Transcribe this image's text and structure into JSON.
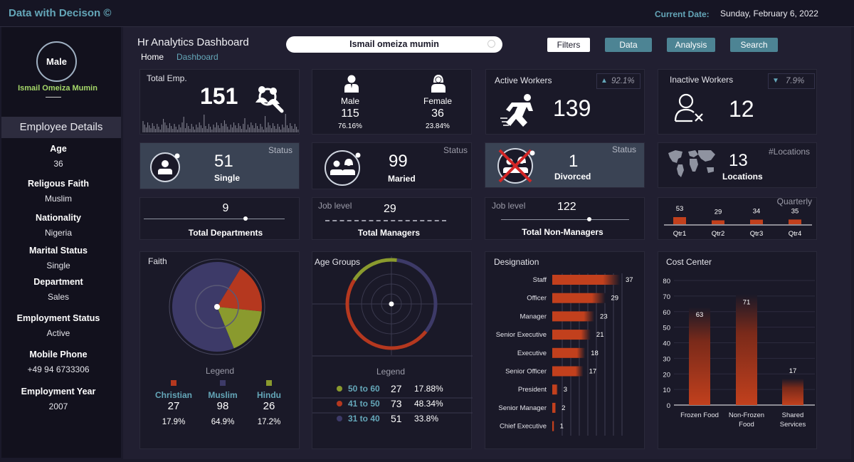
{
  "header": {
    "brand": "Data with Decison ©",
    "current_date_label": "Current Date:",
    "current_date": "Sunday, February 6, 2022",
    "title": "Hr Analytics Dashboard",
    "breadcrumb": {
      "home": "Home",
      "dashboard": "Dashboard"
    },
    "search_value": "Ismail omeiza mumin",
    "buttons": {
      "filters": "Filters",
      "data": "Data",
      "analysis": "Analysis",
      "search": "Search"
    }
  },
  "sidebar": {
    "gender": "Male",
    "name": "Ismail Omeiza Mumin",
    "section_title": "Employee Details",
    "fields": [
      {
        "label": "Age",
        "value": "36"
      },
      {
        "label": "Religous Faith",
        "value": "Muslim"
      },
      {
        "label": "Nationality",
        "value": "Nigeria"
      },
      {
        "label": "Marital Status",
        "value": "Single"
      },
      {
        "label": "Department",
        "value": "Sales"
      },
      {
        "label": "Employment Status",
        "value": "Active"
      },
      {
        "label": "Mobile Phone",
        "value": "+49 94 6733306"
      },
      {
        "label": "Employment Year",
        "value": "2007"
      }
    ]
  },
  "kpi": {
    "total_emp": {
      "label": "Total Emp.",
      "value": "151"
    },
    "male": {
      "label": "Male",
      "value": "115",
      "pct": "76.16%"
    },
    "female": {
      "label": "Female",
      "value": "36",
      "pct": "23.84%"
    },
    "active": {
      "label": "Active Workers",
      "value": "139",
      "pct": "92.1%"
    },
    "inactive": {
      "label": "Inactive Workers",
      "value": "12",
      "pct": "7.9%"
    }
  },
  "status": {
    "tag": "Status",
    "single": {
      "value": "51",
      "label": "Single"
    },
    "married": {
      "value": "99",
      "label": "Maried"
    },
    "divorced": {
      "value": "1",
      "label": "Divorced"
    },
    "locations": {
      "tag": "#Locations",
      "value": "13",
      "label": "Locations"
    }
  },
  "levels": {
    "job_level_tag": "Job level",
    "departments": {
      "value": "9",
      "label": "Total Departments"
    },
    "managers": {
      "value": "29",
      "label": "Total Managers"
    },
    "non_managers": {
      "value": "122",
      "label": "Total Non-Managers"
    }
  },
  "colors": {
    "christian": "#b5381f",
    "muslim": "#3d3a68",
    "hindu": "#8a9a2e",
    "bar": "#c2401d",
    "accent": "#64a6b8"
  },
  "chart_data": [
    {
      "type": "bar",
      "title": "Quarterly",
      "categories": [
        "Qtr1",
        "Qtr2",
        "Qtr3",
        "Qtr4"
      ],
      "values": [
        53,
        29,
        34,
        35
      ]
    },
    {
      "type": "pie",
      "title": "Faith",
      "legend_title": "Legend",
      "categories": [
        "Christian",
        "Muslim",
        "Hindu"
      ],
      "values": [
        27,
        98,
        26
      ],
      "percent_labels": [
        "17.9%",
        "64.9%",
        "17.2%"
      ]
    },
    {
      "type": "pie",
      "title": "Age Groups",
      "legend_title": "Legend",
      "categories": [
        "50 to 60",
        "41 to 50",
        "31 to 40"
      ],
      "values": [
        27,
        73,
        51
      ],
      "percent_labels": [
        "17.88%",
        "48.34%",
        "33.8%"
      ]
    },
    {
      "type": "bar",
      "title": "Designation",
      "categories": [
        "Staff",
        "Officer",
        "Manager",
        "Senior Executive",
        "Executive",
        "Senior Officer",
        "President",
        "Senior Manager",
        "Chief Executive"
      ],
      "values": [
        37,
        29,
        23,
        21,
        18,
        17,
        3,
        2,
        1
      ]
    },
    {
      "type": "bar",
      "title": "Cost Center",
      "categories": [
        "Frozen Food",
        "Non-Frozen Food",
        "Shared Services"
      ],
      "values": [
        63,
        71,
        17
      ],
      "ylim": [
        0,
        80
      ],
      "yticks": [
        "80",
        "70",
        "60",
        "50",
        "40",
        "30",
        "20",
        "10",
        "0"
      ]
    }
  ]
}
